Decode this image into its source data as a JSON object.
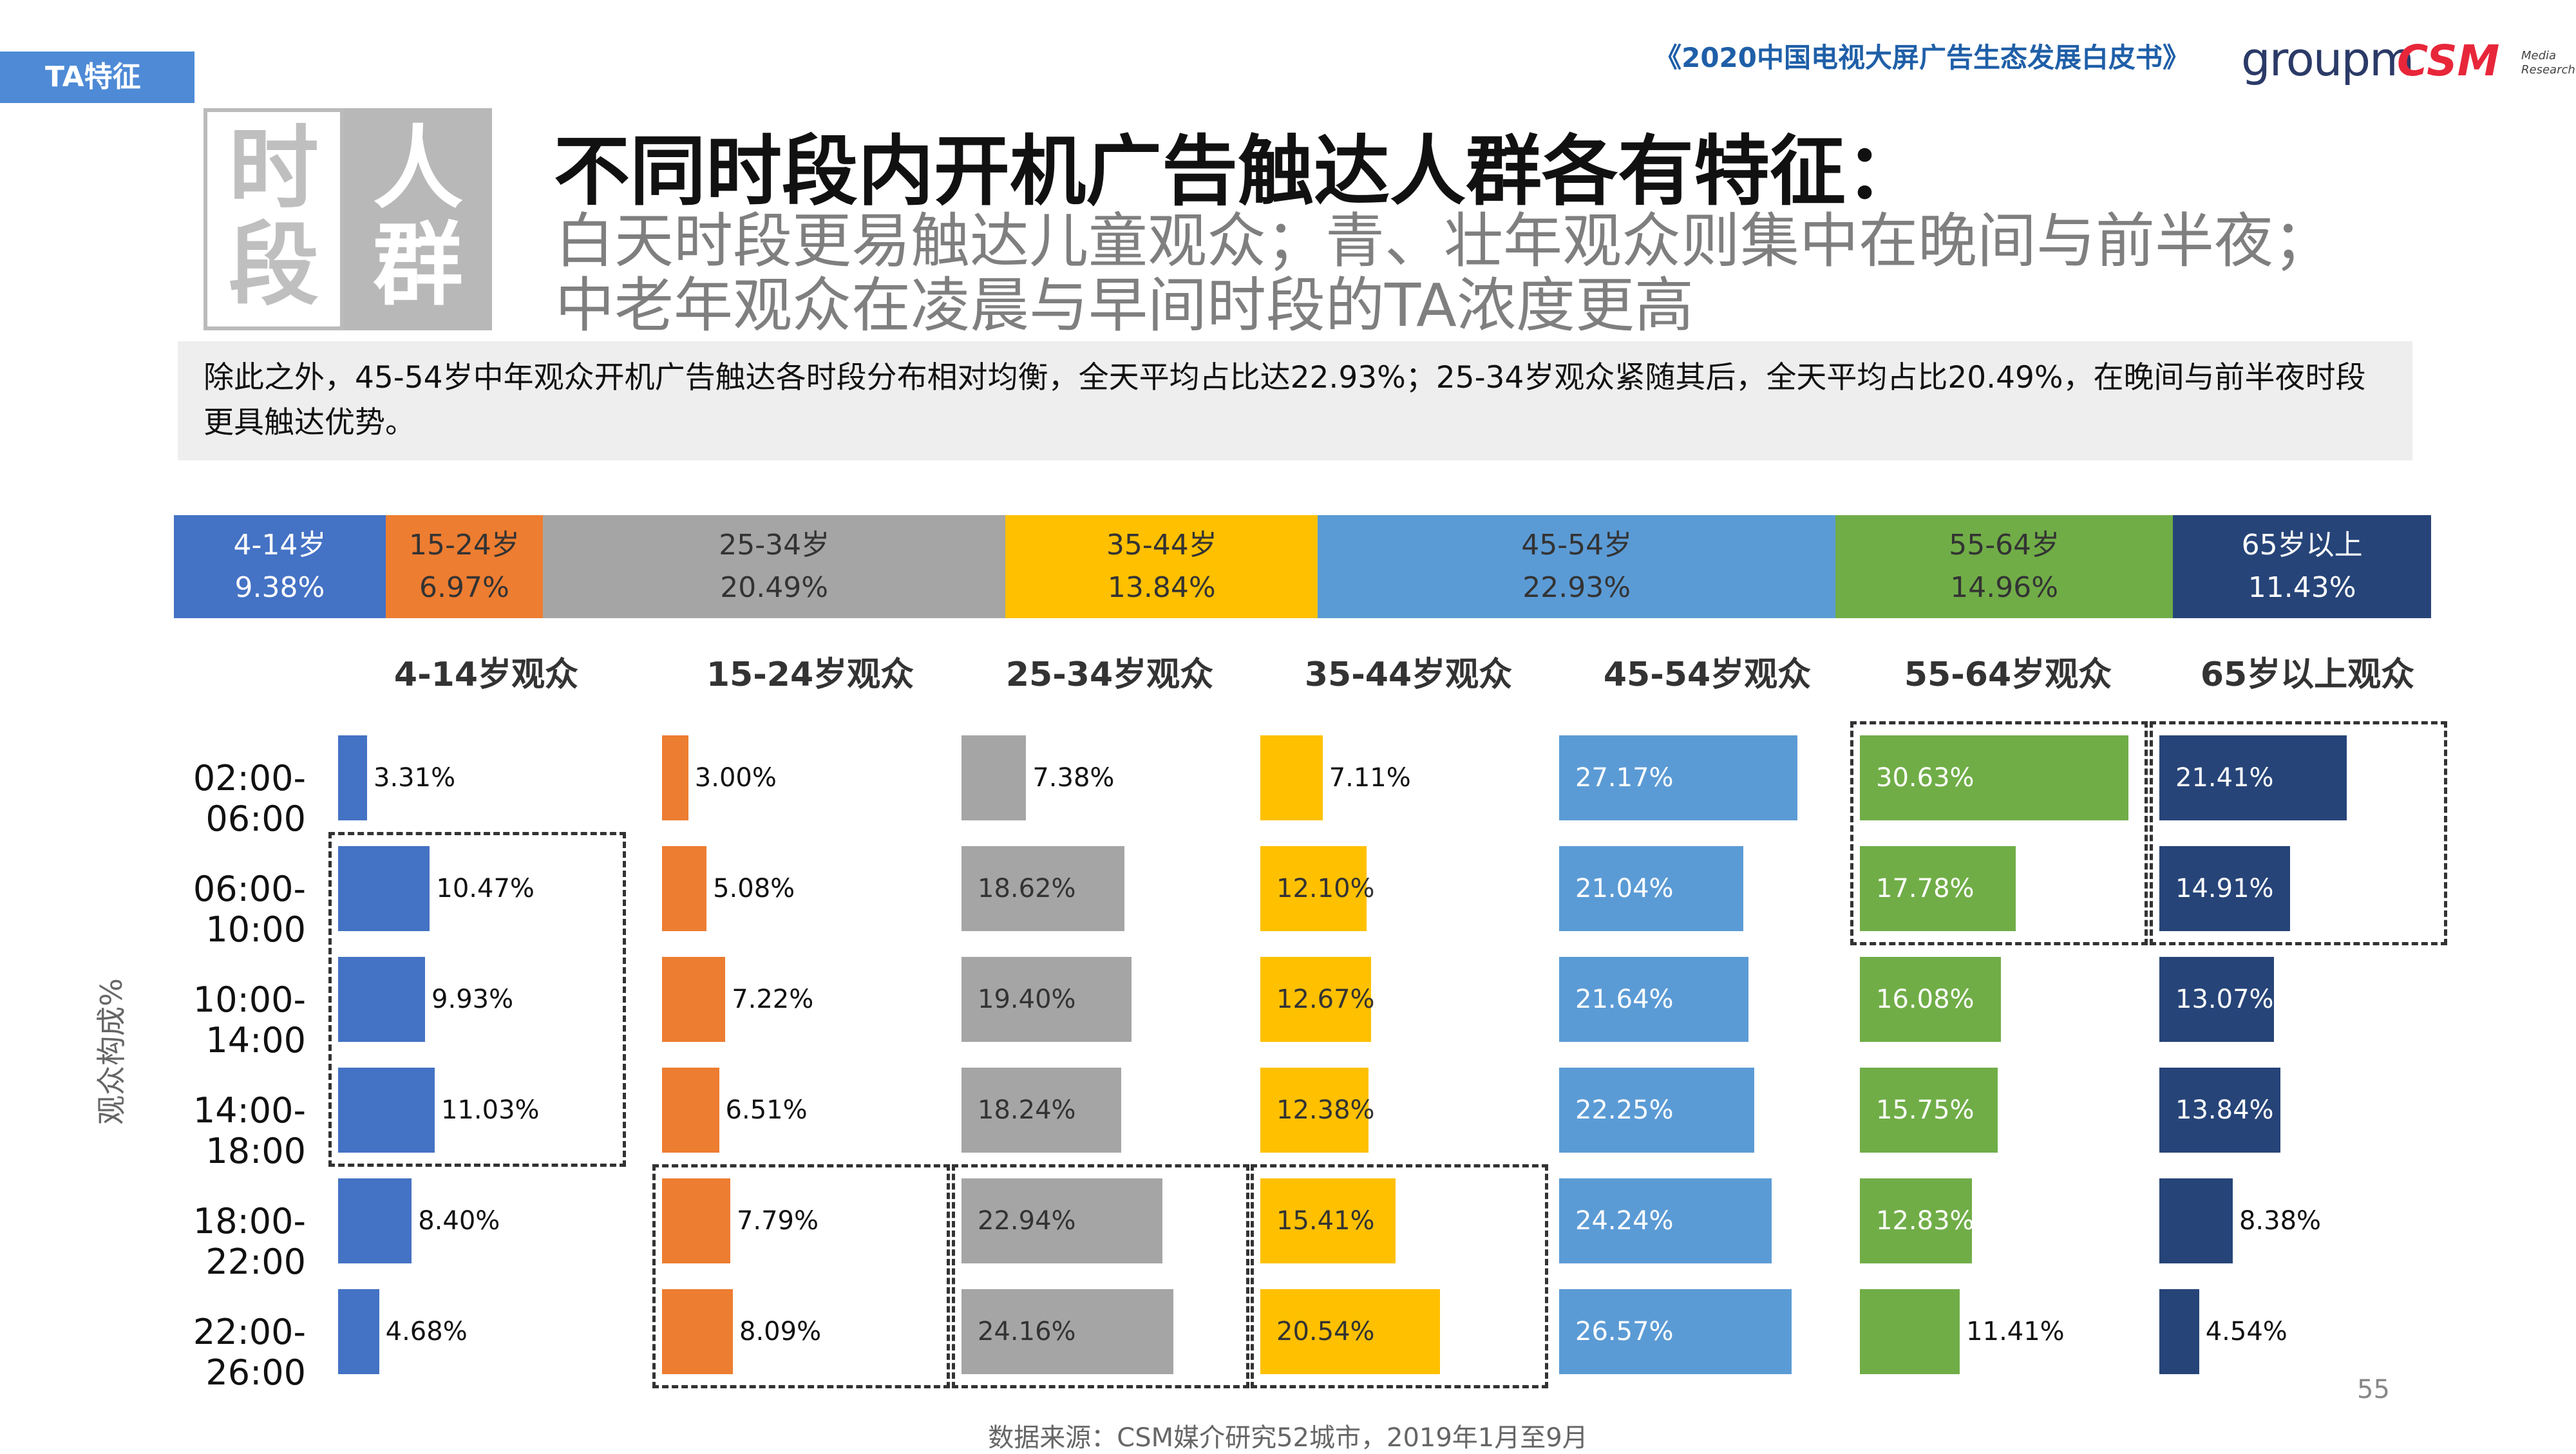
{
  "header": {
    "tag": "TA特征",
    "report_title": "《2020中国电视大屏广告生态发展白皮书》",
    "logo_groupm": "groupm",
    "logo_csm": "CSM",
    "logo_csm_sub": "Media Research"
  },
  "badge": {
    "left_top": "时",
    "left_bottom": "段",
    "right_top": "人",
    "right_bottom": "群"
  },
  "title": {
    "main": "不同时段内开机广告触达人群各有特征：",
    "sub1": "白天时段更易触达儿童观众；青、壮年观众则集中在晚间与前半夜；",
    "sub2": "中老年观众在凌晨与早间时段的TA浓度更高"
  },
  "note": "除此之外，45-54岁中年观众开机广告触达各时段分布相对均衡，全天平均占比达22.93%；25-34岁观众紧随其后，全天平均占比20.49%，在晚间与前半夜时段更具触达优势。",
  "chart_data": {
    "type": "bar",
    "overall": [
      {
        "group": "4-14岁",
        "value": 9.38,
        "label": "9.38%"
      },
      {
        "group": "15-24岁",
        "value": 6.97,
        "label": "6.97%"
      },
      {
        "group": "25-34岁",
        "value": 20.49,
        "label": "20.49%"
      },
      {
        "group": "35-44岁",
        "value": 13.84,
        "label": "13.84%"
      },
      {
        "group": "45-54岁",
        "value": 22.93,
        "label": "22.93%"
      },
      {
        "group": "55-64岁",
        "value": 14.96,
        "label": "14.96%"
      },
      {
        "group": "65岁以上",
        "value": 11.43,
        "label": "11.43%"
      }
    ],
    "ylabel": "观众构成%",
    "categories": [
      "02:00-06:00",
      "06:00-10:00",
      "10:00-14:00",
      "14:00-18:00",
      "18:00-22:00",
      "22:00-26:00"
    ],
    "series": [
      {
        "name": "4-14岁观众",
        "color": "#4472C4",
        "values": [
          3.31,
          10.47,
          9.93,
          11.03,
          8.4,
          4.68
        ],
        "labels": [
          "3.31%",
          "10.47%",
          "9.93%",
          "11.03%",
          "8.40%",
          "4.68%"
        ]
      },
      {
        "name": "15-24岁观众",
        "color": "#ED7D31",
        "values": [
          3.0,
          5.08,
          7.22,
          6.51,
          7.79,
          8.09
        ],
        "labels": [
          "3.00%",
          "5.08%",
          "7.22%",
          "6.51%",
          "7.79%",
          "8.09%"
        ]
      },
      {
        "name": "25-34岁观众",
        "color": "#A5A5A5",
        "values": [
          7.38,
          18.62,
          19.4,
          18.24,
          22.94,
          24.16
        ],
        "labels": [
          "7.38%",
          "18.62%",
          "19.40%",
          "18.24%",
          "22.94%",
          "24.16%"
        ]
      },
      {
        "name": "35-44岁观众",
        "color": "#FFC000",
        "values": [
          7.11,
          12.1,
          12.67,
          12.38,
          15.41,
          20.54
        ],
        "labels": [
          "7.11%",
          "12.10%",
          "12.67%",
          "12.38%",
          "15.41%",
          "20.54%"
        ]
      },
      {
        "name": "45-54岁观众",
        "color": "#5B9BD5",
        "values": [
          27.17,
          21.04,
          21.64,
          22.25,
          24.24,
          26.57
        ],
        "labels": [
          "27.17%",
          "21.04%",
          "21.64%",
          "22.25%",
          "24.24%",
          "26.57%"
        ]
      },
      {
        "name": "55-64岁观众",
        "color": "#70AD47",
        "values": [
          30.63,
          17.78,
          16.08,
          15.75,
          12.83,
          11.41
        ],
        "labels": [
          "30.63%",
          "17.78%",
          "16.08%",
          "15.75%",
          "12.83%",
          "11.41%"
        ]
      },
      {
        "name": "65岁以上观众",
        "color": "#264478",
        "values": [
          21.41,
          14.91,
          13.07,
          13.84,
          8.38,
          4.54
        ],
        "labels": [
          "21.41%",
          "14.91%",
          "13.07%",
          "13.84%",
          "8.38%",
          "4.54%"
        ]
      }
    ]
  },
  "footer": {
    "source": "数据来源：CSM媒介研究52城市，2019年1月至9月",
    "page": "55"
  }
}
